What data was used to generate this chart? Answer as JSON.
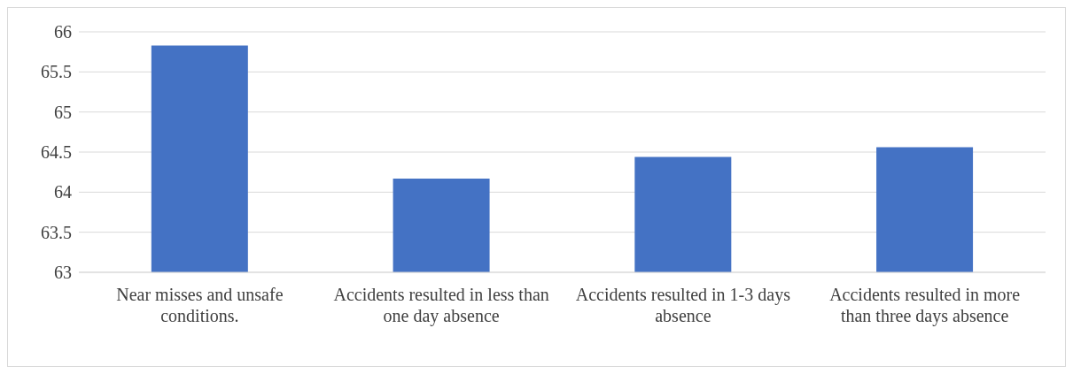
{
  "chart_data": {
    "type": "bar",
    "categories": [
      "Near misses and unsafe conditions.",
      "Accidents resulted in less than one day absence",
      "Accidents resulted in 1-3 days absence",
      "Accidents resulted in more than three days absence"
    ],
    "values": [
      65.83,
      64.17,
      64.44,
      64.56
    ],
    "color": "#4472c4",
    "ylim": [
      63,
      66
    ],
    "yticks": [
      63,
      63.5,
      64,
      64.5,
      65,
      65.5,
      66
    ],
    "grid": "y"
  }
}
